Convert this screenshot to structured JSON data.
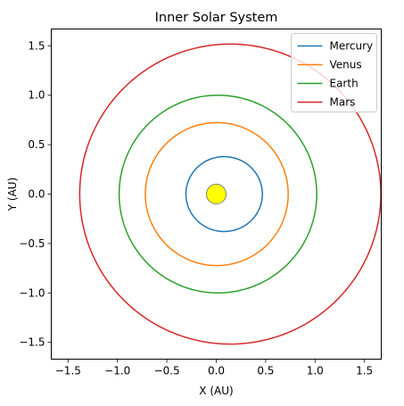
{
  "chart_data": {
    "type": "line",
    "title": "Inner Solar System",
    "xlabel": "X (AU)",
    "ylabel": "Y (AU)",
    "xlim": [
      -1.67,
      1.67
    ],
    "ylim": [
      -1.67,
      1.67
    ],
    "xticks": [
      -1.5,
      -1.0,
      -0.5,
      0.0,
      0.5,
      1.0,
      1.5
    ],
    "xtick_labels": [
      "−1.5",
      "−1.0",
      "−0.5",
      "0.0",
      "0.5",
      "1.0",
      "1.5"
    ],
    "yticks": [
      -1.5,
      -1.0,
      -0.5,
      0.0,
      0.5,
      1.0,
      1.5
    ],
    "ytick_labels": [
      "−1.5",
      "−1.0",
      "−0.5",
      "0.0",
      "0.5",
      "1.0",
      "1.5"
    ],
    "grid": false,
    "legend_position": "top-right",
    "sun": {
      "x": 0,
      "y": 0,
      "radius": 0.1,
      "fill": "#ffff00",
      "stroke": "#808080"
    },
    "series": [
      {
        "name": "Mercury",
        "color": "#1f77b4",
        "semi_major_axis": 0.387,
        "eccentricity": 0.206
      },
      {
        "name": "Venus",
        "color": "#ff7f0e",
        "semi_major_axis": 0.723,
        "eccentricity": 0.007
      },
      {
        "name": "Earth",
        "color": "#2ca02c",
        "semi_major_axis": 1.0,
        "eccentricity": 0.017
      },
      {
        "name": "Mars",
        "color": "#d62728",
        "semi_major_axis": 1.524,
        "eccentricity": 0.093
      }
    ]
  }
}
